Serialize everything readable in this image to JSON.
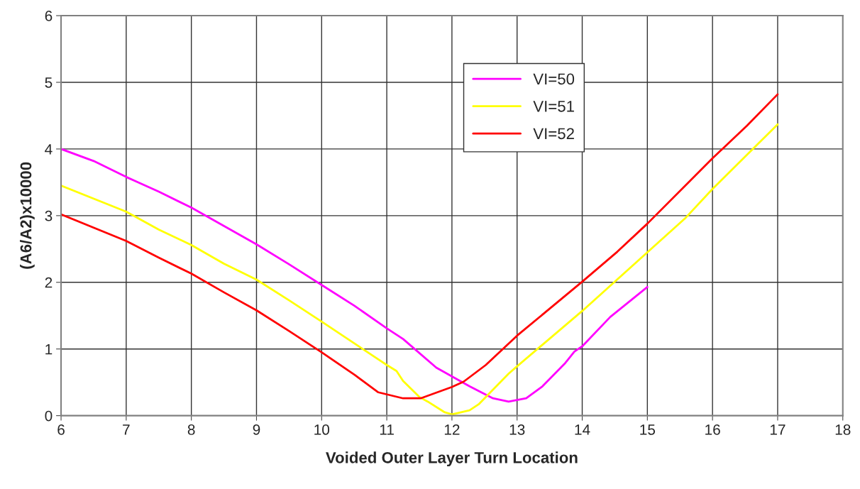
{
  "chart_data": {
    "type": "line",
    "xlabel": "Voided Outer Layer Turn Location",
    "ylabel": "(A6/A2)x10000",
    "xlim": [
      6,
      18
    ],
    "xticks": [
      6,
      7,
      8,
      9,
      10,
      11,
      12,
      13,
      14,
      15,
      16,
      17,
      18
    ],
    "ylim": [
      0,
      6
    ],
    "yticks": [
      0,
      1,
      2,
      3,
      4,
      5,
      6
    ],
    "grid": true,
    "legend": "top",
    "marker": "none",
    "line_style": "solid",
    "series": [
      {
        "name": "VI=50",
        "color": "#ff00ff",
        "x": [
          6,
          6.5,
          7,
          7.5,
          8,
          9,
          9.5,
          10,
          10.5,
          11,
          11.25,
          11.76,
          12.27,
          12.63,
          12.87,
          13.14,
          13.39,
          13.74,
          13.88,
          14,
          14.43,
          15
        ],
        "values": [
          4.0,
          3.82,
          3.58,
          3.36,
          3.12,
          2.57,
          2.27,
          1.96,
          1.65,
          1.31,
          1.15,
          0.72,
          0.44,
          0.26,
          0.21,
          0.26,
          0.44,
          0.79,
          0.96,
          1.04,
          1.48,
          1.93
        ]
      },
      {
        "name": "VI=51",
        "color": "#ffff00",
        "x": [
          6,
          7,
          7.5,
          8,
          8.5,
          9,
          9.5,
          10,
          11,
          11.15,
          11.25,
          11.5,
          11.63,
          11.89,
          12,
          12.27,
          12.41,
          12.87,
          13,
          14,
          15,
          15.59,
          16,
          16.64,
          17
        ],
        "values": [
          3.45,
          3.06,
          2.79,
          2.56,
          2.28,
          2.04,
          1.73,
          1.41,
          0.76,
          0.67,
          0.52,
          0.28,
          0.21,
          0.05,
          0.02,
          0.08,
          0.17,
          0.63,
          0.74,
          1.57,
          2.45,
          2.97,
          3.4,
          4.02,
          4.37
        ]
      },
      {
        "name": "VI=52",
        "color": "#ff0000",
        "x": [
          6,
          7,
          7.5,
          8,
          8.5,
          9,
          9.5,
          10,
          10.51,
          10.87,
          11.25,
          11.52,
          12,
          12.18,
          12.52,
          13,
          14,
          14.54,
          15,
          16,
          16.53,
          17
        ],
        "values": [
          3.02,
          2.62,
          2.37,
          2.13,
          1.85,
          1.58,
          1.27,
          0.95,
          0.61,
          0.35,
          0.26,
          0.26,
          0.43,
          0.51,
          0.76,
          1.2,
          2.01,
          2.46,
          2.88,
          3.86,
          4.35,
          4.82
        ]
      }
    ]
  }
}
